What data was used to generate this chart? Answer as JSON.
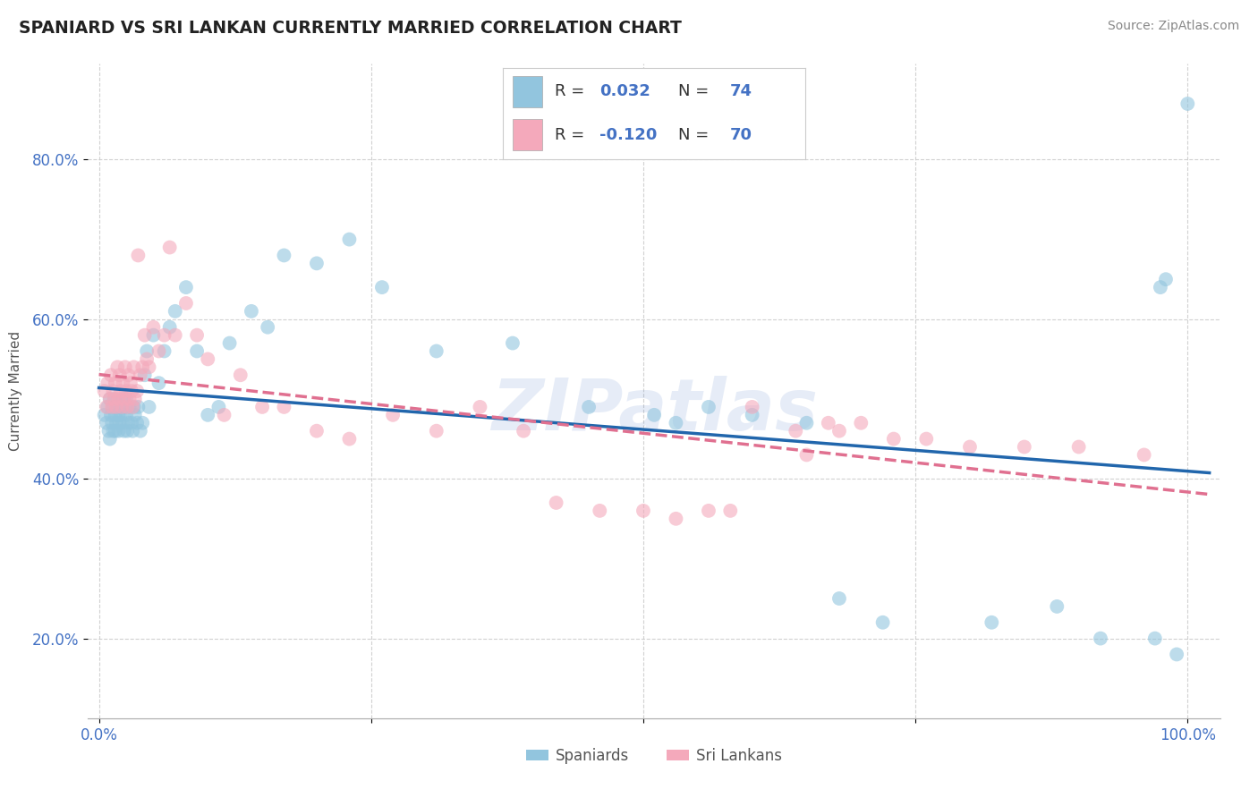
{
  "title": "SPANIARD VS SRI LANKAN CURRENTLY MARRIED CORRELATION CHART",
  "source": "Source: ZipAtlas.com",
  "ylabel": "Currently Married",
  "xlim": [
    -0.01,
    1.03
  ],
  "ylim": [
    0.1,
    0.92
  ],
  "x_ticks": [
    0.0,
    1.0
  ],
  "x_tick_labels": [
    "0.0%",
    "100.0%"
  ],
  "y_ticks": [
    0.2,
    0.4,
    0.6,
    0.8
  ],
  "y_tick_labels": [
    "20.0%",
    "40.0%",
    "60.0%",
    "80.0%"
  ],
  "spaniard_color": "#92c5de",
  "srilanka_color": "#f4a9bb",
  "legend_label_1": "Spaniards",
  "legend_label_2": "Sri Lankans",
  "watermark": "ZIPatlas",
  "blue_line_color": "#2166ac",
  "pink_line_color": "#e07090",
  "spaniard_x": [
    0.005,
    0.007,
    0.008,
    0.009,
    0.01,
    0.01,
    0.011,
    0.012,
    0.013,
    0.013,
    0.014,
    0.015,
    0.015,
    0.016,
    0.017,
    0.018,
    0.018,
    0.019,
    0.02,
    0.021,
    0.022,
    0.022,
    0.023,
    0.024,
    0.025,
    0.025,
    0.026,
    0.027,
    0.028,
    0.03,
    0.031,
    0.032,
    0.033,
    0.035,
    0.036,
    0.038,
    0.04,
    0.042,
    0.044,
    0.046,
    0.05,
    0.055,
    0.06,
    0.065,
    0.07,
    0.08,
    0.09,
    0.1,
    0.11,
    0.12,
    0.14,
    0.155,
    0.17,
    0.2,
    0.23,
    0.26,
    0.31,
    0.38,
    0.45,
    0.51,
    0.53,
    0.56,
    0.6,
    0.65,
    0.68,
    0.72,
    0.82,
    0.88,
    0.92,
    0.97,
    0.975,
    0.98,
    0.99,
    1.0
  ],
  "spaniard_y": [
    0.48,
    0.47,
    0.49,
    0.46,
    0.5,
    0.45,
    0.48,
    0.47,
    0.46,
    0.49,
    0.5,
    0.48,
    0.46,
    0.47,
    0.49,
    0.48,
    0.46,
    0.47,
    0.48,
    0.49,
    0.5,
    0.47,
    0.46,
    0.49,
    0.48,
    0.5,
    0.46,
    0.47,
    0.49,
    0.47,
    0.46,
    0.49,
    0.48,
    0.47,
    0.49,
    0.46,
    0.47,
    0.53,
    0.56,
    0.49,
    0.58,
    0.52,
    0.56,
    0.59,
    0.61,
    0.64,
    0.56,
    0.48,
    0.49,
    0.57,
    0.61,
    0.59,
    0.68,
    0.67,
    0.7,
    0.64,
    0.56,
    0.57,
    0.49,
    0.48,
    0.47,
    0.49,
    0.48,
    0.47,
    0.25,
    0.22,
    0.22,
    0.24,
    0.2,
    0.2,
    0.64,
    0.65,
    0.18,
    0.87
  ],
  "srilanka_x": [
    0.005,
    0.007,
    0.008,
    0.01,
    0.011,
    0.012,
    0.013,
    0.014,
    0.015,
    0.016,
    0.017,
    0.018,
    0.019,
    0.02,
    0.021,
    0.022,
    0.023,
    0.024,
    0.025,
    0.026,
    0.027,
    0.028,
    0.029,
    0.03,
    0.031,
    0.032,
    0.033,
    0.035,
    0.036,
    0.038,
    0.04,
    0.042,
    0.044,
    0.046,
    0.05,
    0.055,
    0.06,
    0.065,
    0.07,
    0.08,
    0.09,
    0.1,
    0.115,
    0.13,
    0.15,
    0.17,
    0.2,
    0.23,
    0.27,
    0.31,
    0.35,
    0.39,
    0.42,
    0.46,
    0.5,
    0.53,
    0.56,
    0.58,
    0.6,
    0.64,
    0.65,
    0.67,
    0.68,
    0.7,
    0.73,
    0.76,
    0.8,
    0.85,
    0.9,
    0.96
  ],
  "srilanka_y": [
    0.51,
    0.49,
    0.52,
    0.5,
    0.53,
    0.49,
    0.51,
    0.5,
    0.52,
    0.49,
    0.54,
    0.5,
    0.53,
    0.51,
    0.49,
    0.52,
    0.5,
    0.54,
    0.51,
    0.49,
    0.53,
    0.5,
    0.52,
    0.51,
    0.49,
    0.54,
    0.5,
    0.51,
    0.68,
    0.53,
    0.54,
    0.58,
    0.55,
    0.54,
    0.59,
    0.56,
    0.58,
    0.69,
    0.58,
    0.62,
    0.58,
    0.55,
    0.48,
    0.53,
    0.49,
    0.49,
    0.46,
    0.45,
    0.48,
    0.46,
    0.49,
    0.46,
    0.37,
    0.36,
    0.36,
    0.35,
    0.36,
    0.36,
    0.49,
    0.46,
    0.43,
    0.47,
    0.46,
    0.47,
    0.45,
    0.45,
    0.44,
    0.44,
    0.44,
    0.43
  ]
}
